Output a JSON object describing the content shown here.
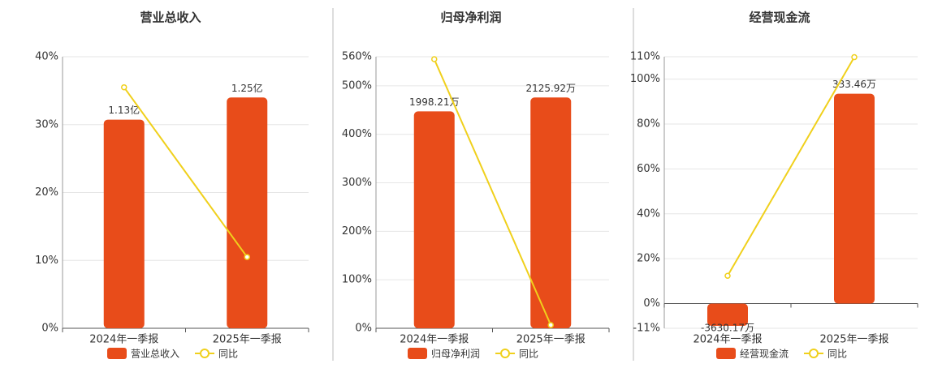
{
  "chart_data": [
    {
      "type": "bar-line",
      "title": "营业总收入",
      "categories": [
        "2024年一季报",
        "2025年一季报"
      ],
      "series": [
        {
          "name": "营业总收入",
          "kind": "bar",
          "color": "#e84c1a",
          "values": [
            1.13,
            1.25
          ],
          "value_labels": [
            "1.13亿",
            "1.25亿"
          ]
        },
        {
          "name": "同比",
          "kind": "line",
          "color": "#f0d01c",
          "values": [
            35.5,
            10.5
          ]
        }
      ],
      "ylim": [
        0,
        40
      ],
      "yticks": [
        {
          "value": 0,
          "label": "0%"
        },
        {
          "value": 10,
          "label": "10%"
        },
        {
          "value": 20,
          "label": "20%"
        },
        {
          "value": 30,
          "label": "30%"
        },
        {
          "value": 40,
          "label": "40%"
        }
      ],
      "grid": true
    },
    {
      "type": "bar-line",
      "title": "归母净利润",
      "categories": [
        "2024年一季报",
        "2025年一季报"
      ],
      "series": [
        {
          "name": "归母净利润",
          "kind": "bar",
          "color": "#e84c1a",
          "values": [
            1998.21,
            2125.92
          ],
          "value_labels": [
            "1998.21万",
            "2125.92万"
          ]
        },
        {
          "name": "同比",
          "kind": "line",
          "color": "#f0d01c",
          "values": [
            555,
            6.7
          ]
        }
      ],
      "ylim": [
        0,
        560
      ],
      "yticks": [
        {
          "value": 0,
          "label": "0%"
        },
        {
          "value": 100,
          "label": "100%"
        },
        {
          "value": 200,
          "label": "200%"
        },
        {
          "value": 300,
          "label": "300%"
        },
        {
          "value": 400,
          "label": "400%"
        },
        {
          "value": 500,
          "label": "500%"
        },
        {
          "value": 560,
          "label": "560%"
        }
      ],
      "grid": true
    },
    {
      "type": "bar-line",
      "title": "经营现金流",
      "categories": [
        "2024年一季报",
        "2025年一季报"
      ],
      "series": [
        {
          "name": "经营现金流",
          "kind": "bar",
          "color": "#e84c1a",
          "values": [
            -3630.17,
            333.46
          ],
          "value_labels": [
            "-3630.17万",
            "333.46万"
          ]
        },
        {
          "name": "同比",
          "kind": "line",
          "color": "#f0d01c",
          "values": [
            12.4,
            109.8
          ]
        }
      ],
      "ylim": [
        -11,
        110
      ],
      "yticks": [
        {
          "value": -11,
          "label": "-11%"
        },
        {
          "value": 0,
          "label": "0%"
        },
        {
          "value": 20,
          "label": "20%"
        },
        {
          "value": 40,
          "label": "40%"
        },
        {
          "value": 60,
          "label": "60%"
        },
        {
          "value": 80,
          "label": "80%"
        },
        {
          "value": 100,
          "label": "100%"
        },
        {
          "value": 110,
          "label": "110%"
        }
      ],
      "grid": true
    }
  ]
}
